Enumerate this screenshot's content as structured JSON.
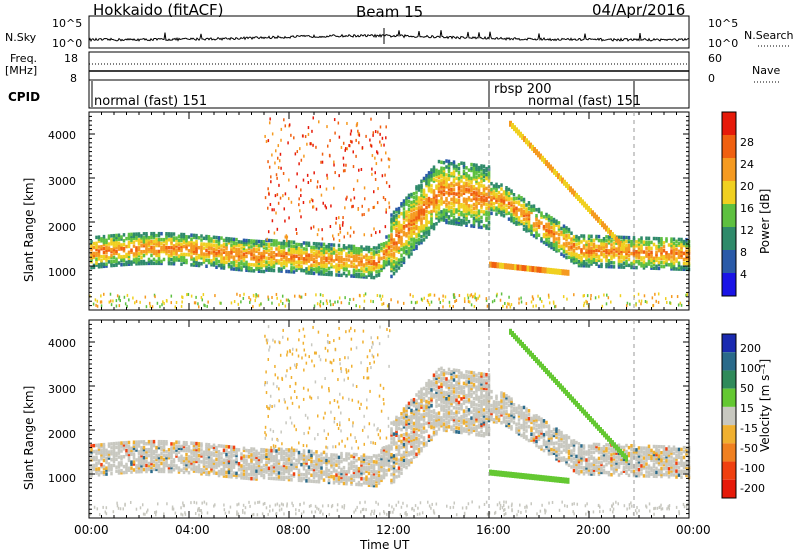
{
  "header": {
    "radar": "Hokkaido (fitACF)",
    "beam": "Beam 15",
    "date": "04/Apr/2016"
  },
  "top_panels": {
    "nsky_label": "N.Sky",
    "nsky_ticks": [
      "10^5",
      "10^0"
    ],
    "nsearch_label": "N.Search",
    "freq_label_top": "Freq.",
    "freq_label_bot": "[MHz]",
    "freq_ticks": [
      "18",
      "8"
    ],
    "nave_ticks": [
      "60",
      "0"
    ],
    "nave_label": "Nave",
    "cpid_label": "CPID",
    "cpid_segments": [
      "normal (fast) 151",
      "rbsp 200",
      "normal (fast) 151"
    ]
  },
  "chart_data": [
    {
      "type": "heatmap",
      "name": "Power",
      "ylabel": "Slant Range [km]",
      "xlabel": "Time UT",
      "x_ticks": [
        "00:00",
        "04:00",
        "08:00",
        "12:00",
        "16:00",
        "20:00",
        "00:00"
      ],
      "y_ticks": [
        "1000",
        "2000",
        "3000",
        "4000"
      ],
      "ylim": [
        0,
        4500
      ],
      "xlim_hours": [
        0,
        24
      ],
      "colorbar_label": "Power [dB]",
      "colorbar_ticks": [
        "4",
        "8",
        "12",
        "16",
        "20",
        "24",
        "28"
      ],
      "colors": [
        "#1a14e6",
        "#2a5aa8",
        "#2f8a6a",
        "#5ec040",
        "#f0d020",
        "#f59a20",
        "#f06010",
        "#e61a0a"
      ]
    },
    {
      "type": "heatmap",
      "name": "Velocity",
      "ylabel": "Slant Range [km]",
      "xlabel": "Time UT",
      "x_ticks": [
        "00:00",
        "04:00",
        "08:00",
        "12:00",
        "16:00",
        "20:00",
        "00:00"
      ],
      "y_ticks": [
        "1000",
        "2000",
        "3000",
        "4000"
      ],
      "ylim": [
        0,
        4500
      ],
      "xlim_hours": [
        0,
        24
      ],
      "colorbar_label": "Velocity [m s⁻¹]",
      "colorbar_ticks": [
        "200",
        "100",
        "50",
        "15",
        "-15",
        "-50",
        "-100",
        "-200"
      ],
      "colors": [
        "#1a2ab0",
        "#2a6a8a",
        "#2f8a5a",
        "#64c832",
        "#c8c8c0",
        "#f0b030",
        "#f08020",
        "#f04010",
        "#e61a0a"
      ]
    }
  ]
}
